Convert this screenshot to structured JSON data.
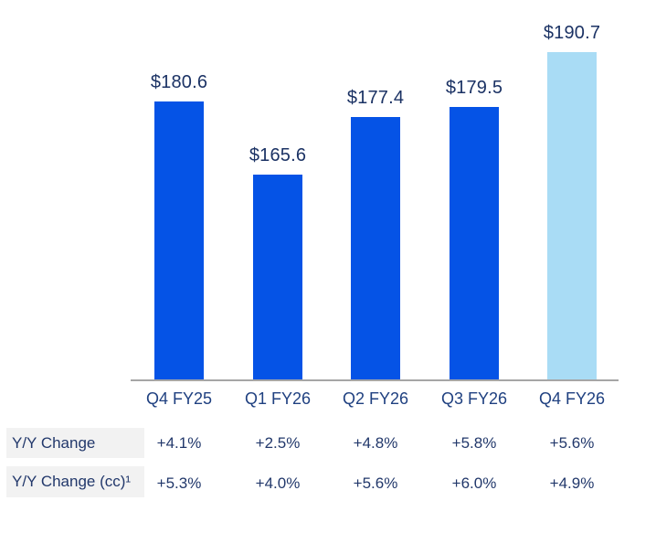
{
  "chart_data": {
    "type": "bar",
    "title": "",
    "categories": [
      "Q4 FY25",
      "Q1 FY26",
      "Q2 FY26",
      "Q3 FY26",
      "Q4 FY26"
    ],
    "values": [
      180.6,
      165.6,
      177.4,
      179.5,
      190.7
    ],
    "value_labels": [
      "$180.6",
      "$165.6",
      "$177.4",
      "$179.5",
      "$190.7"
    ],
    "highlight_index": 4,
    "ylim": [
      123.5,
      190.7
    ],
    "grid": false,
    "legend": false,
    "table_rows": [
      {
        "label": "Y/Y Change",
        "values": [
          "+4.1%",
          "+2.5%",
          "+4.8%",
          "+5.8%",
          "+5.6%"
        ]
      },
      {
        "label": "Y/Y Change (cc)¹",
        "values": [
          "+5.3%",
          "+4.0%",
          "+5.6%",
          "+6.0%",
          "+4.9%"
        ]
      }
    ]
  },
  "colors": {
    "bar_primary": "#0553E6",
    "bar_highlight": "#A9DCF5",
    "axis_line": "#A6A6A6",
    "row_label_bg": "#F2F2F2",
    "value_label_text": "#1B3264",
    "category_text": "#1F4080",
    "table_text": "#22386B"
  }
}
